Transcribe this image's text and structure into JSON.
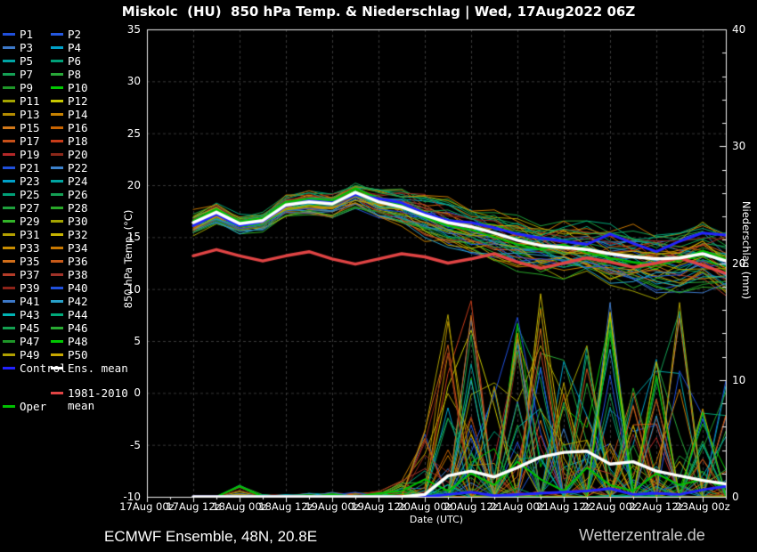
{
  "title": "Miskolc  (HU)  850 hPa Temp. & Niederschlag | Wed, 17Aug2022 06Z",
  "footer": {
    "left": "ECMWF Ensemble, 48N, 20.8E",
    "right": "Wetterzentrale.de"
  },
  "colors": {
    "background": "#000000",
    "frame": "#f0f0f0",
    "grid": "#3a3a3a",
    "tick_text": "#ffffff",
    "control": "#2222ff",
    "ens_mean": "#ffffff",
    "climate_mean": "#e04444",
    "oper": "#00c000"
  },
  "legend": {
    "members": [
      {
        "label": "P1",
        "color": "#2050dc"
      },
      {
        "label": "P2",
        "color": "#2458e0"
      },
      {
        "label": "P3",
        "color": "#3c78c8"
      },
      {
        "label": "P4",
        "color": "#00a0c8"
      },
      {
        "label": "P5",
        "color": "#00a4a4"
      },
      {
        "label": "P6",
        "color": "#00a078"
      },
      {
        "label": "P7",
        "color": "#14a055"
      },
      {
        "label": "P8",
        "color": "#28a838"
      },
      {
        "label": "P9",
        "color": "#1e9628"
      },
      {
        "label": "P10",
        "color": "#00c800"
      },
      {
        "label": "P11",
        "color": "#a4a400"
      },
      {
        "label": "P12",
        "color": "#c8c800"
      },
      {
        "label": "P13",
        "color": "#b48c00"
      },
      {
        "label": "P14",
        "color": "#c88200"
      },
      {
        "label": "P15",
        "color": "#d27819"
      },
      {
        "label": "P16",
        "color": "#c86400"
      },
      {
        "label": "P17",
        "color": "#c85019"
      },
      {
        "label": "P18",
        "color": "#c83c19"
      },
      {
        "label": "P19",
        "color": "#b42828"
      },
      {
        "label": "P20",
        "color": "#8c2819"
      },
      {
        "label": "P21",
        "color": "#2050dc"
      },
      {
        "label": "P22",
        "color": "#3c82cd"
      },
      {
        "label": "P23",
        "color": "#00a0c8"
      },
      {
        "label": "P24",
        "color": "#00a4a0"
      },
      {
        "label": "P25",
        "color": "#00a078"
      },
      {
        "label": "P26",
        "color": "#14a055"
      },
      {
        "label": "P27",
        "color": "#1ea03c"
      },
      {
        "label": "P28",
        "color": "#28a828"
      },
      {
        "label": "P29",
        "color": "#32b428"
      },
      {
        "label": "P30",
        "color": "#a4a400"
      },
      {
        "label": "P31",
        "color": "#b4a000"
      },
      {
        "label": "P32",
        "color": "#c8b400"
      },
      {
        "label": "P33",
        "color": "#c88c00"
      },
      {
        "label": "P34",
        "color": "#c87800"
      },
      {
        "label": "P35",
        "color": "#d26e19"
      },
      {
        "label": "P36",
        "color": "#c85a19"
      },
      {
        "label": "P37",
        "color": "#b43c28"
      },
      {
        "label": "P38",
        "color": "#a03228"
      },
      {
        "label": "P39",
        "color": "#8c2319"
      },
      {
        "label": "P40",
        "color": "#2050dc"
      },
      {
        "label": "P41",
        "color": "#3c78c8"
      },
      {
        "label": "P42",
        "color": "#28a0c8"
      },
      {
        "label": "P43",
        "color": "#00b4b4"
      },
      {
        "label": "P44",
        "color": "#00aa7a"
      },
      {
        "label": "P45",
        "color": "#14a050"
      },
      {
        "label": "P46",
        "color": "#28aa32"
      },
      {
        "label": "P47",
        "color": "#1e9628"
      },
      {
        "label": "P48",
        "color": "#00c800"
      },
      {
        "label": "P49",
        "color": "#b0a000"
      },
      {
        "label": "P50",
        "color": "#c8a800"
      }
    ],
    "control_label": "Control",
    "ens_mean_label": "Ens. mean",
    "climate_label_line1": "1981-2010",
    "climate_label_line2": "mean",
    "oper_label": "Oper"
  },
  "chart_data": {
    "type": "line",
    "title": "Miskolc (HU) 850 hPa Temp. & Niederschlag | Wed, 17Aug2022 06Z",
    "x_axis": {
      "label": "Date (UTC)",
      "range_hours": [
        0,
        150
      ],
      "tick_hours": [
        0,
        12,
        24,
        36,
        48,
        60,
        72,
        84,
        96,
        108,
        120,
        132,
        144
      ],
      "tick_labels": [
        "17Aug 00z",
        "17Aug 12z",
        "18Aug 00z",
        "18Aug 12z",
        "19Aug 00z",
        "19Aug 12z",
        "20Aug 00z",
        "20Aug 12z",
        "21Aug 00z",
        "21Aug 12z",
        "22Aug 00z",
        "22Aug 12z",
        "23Aug 00z"
      ],
      "minor_tick_step_hours": 6
    },
    "y_left": {
      "label": "850 hPa Temp. (°C)",
      "range": [
        -10,
        35
      ],
      "ticks": [
        35,
        30,
        25,
        20,
        15,
        10,
        5,
        0,
        -5,
        -10
      ],
      "grid_step": 5
    },
    "y_right": {
      "label": "Niederschlag (mm)",
      "range": [
        0,
        40
      ],
      "ticks": [
        40,
        30,
        20,
        10,
        0
      ],
      "minor_tick_step": 2
    },
    "time_hours": [
      12,
      18,
      24,
      30,
      36,
      42,
      48,
      54,
      60,
      66,
      72,
      78,
      84,
      90,
      96,
      102,
      108,
      114,
      120,
      126,
      132,
      138,
      144,
      150
    ],
    "series": {
      "ens_mean_temp": [
        16.4,
        17.4,
        16.3,
        16.6,
        18.1,
        18.4,
        18.2,
        19.3,
        18.4,
        17.9,
        17.1,
        16.4,
        16.0,
        15.4,
        14.7,
        14.2,
        14.0,
        13.8,
        13.4,
        13.1,
        12.9,
        13.0,
        13.4,
        12.7
      ],
      "control_temp": [
        16.1,
        17.2,
        16.1,
        16.5,
        18.0,
        18.5,
        18.3,
        19.1,
        18.7,
        18.3,
        17.3,
        16.6,
        16.4,
        15.9,
        15.3,
        14.9,
        14.6,
        14.3,
        15.3,
        14.4,
        13.6,
        14.6,
        15.4,
        15.2
      ],
      "climate_mean_temp": [
        13.2,
        13.8,
        13.2,
        12.7,
        13.2,
        13.6,
        12.9,
        12.4,
        12.9,
        13.4,
        13.1,
        12.5,
        12.9,
        13.4,
        12.6,
        12.0,
        12.5,
        13.0,
        12.6,
        12.1,
        12.5,
        13.0,
        12.3,
        11.5
      ],
      "oper_temp": [
        16.6,
        17.7,
        16.5,
        16.8,
        18.4,
        18.7,
        18.5,
        19.7,
        18.7,
        18.1,
        16.9,
        16.1,
        15.7,
        15.0,
        14.3,
        13.8,
        14.3,
        13.5,
        13.0,
        12.6,
        12.4,
        12.9,
        13.7,
        12.9
      ],
      "ens_mean_precip": [
        0,
        0,
        0,
        0,
        0,
        0,
        0,
        0,
        0,
        0,
        0.2,
        1.8,
        2.2,
        1.7,
        2.5,
        3.4,
        3.8,
        3.9,
        2.8,
        3.0,
        2.2,
        1.8,
        1.4,
        1.1
      ],
      "control_precip": [
        0,
        0,
        0,
        0,
        0,
        0,
        0,
        0,
        0,
        0,
        0,
        0.2,
        0.4,
        0.1,
        0.2,
        0.3,
        0.4,
        0.5,
        0.7,
        0.2,
        0.3,
        0.2,
        0.6,
        0.9
      ],
      "oper_precip": [
        0,
        0,
        0.9,
        0,
        0,
        0,
        0.2,
        0,
        0.3,
        0.5,
        1.5,
        0.5,
        2.0,
        1.0,
        3.0,
        1.5,
        0.5,
        2.5,
        1.0,
        0.5,
        2.0,
        1.0,
        1.5,
        0.8
      ]
    },
    "envelopes": {
      "temp_spread": [
        1.1,
        1.0,
        0.9,
        0.9,
        1.0,
        1.1,
        1.1,
        1.2,
        1.4,
        1.7,
        2.0,
        2.1,
        2.2,
        2.3,
        2.4,
        2.5,
        2.6,
        2.7,
        2.8,
        2.9,
        3.0,
        3.0,
        3.1,
        3.2
      ],
      "precip_max": [
        0,
        0,
        1.0,
        0.2,
        0.2,
        0.3,
        0.4,
        0.4,
        0.5,
        1.5,
        6,
        16,
        17,
        10,
        17,
        19,
        12,
        14,
        17,
        10,
        12,
        17,
        8,
        10
      ]
    },
    "n_members": 50,
    "legend_position": "left"
  }
}
